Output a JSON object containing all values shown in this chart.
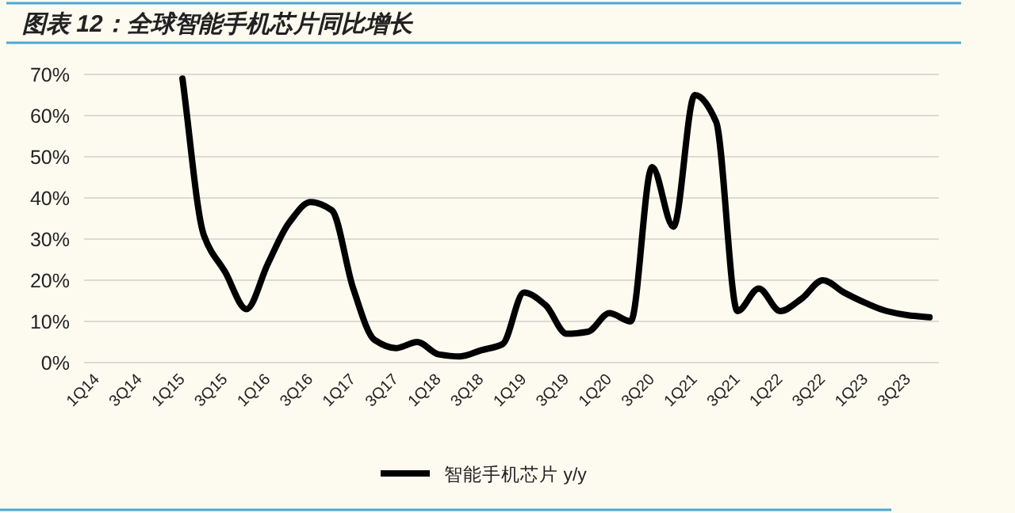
{
  "chart_data": {
    "type": "line",
    "title": "图表 12：全球智能手机芯片同比增长",
    "categories": [
      "1Q14",
      null,
      "3Q14",
      null,
      "1Q15",
      null,
      "3Q15",
      null,
      "1Q16",
      null,
      "3Q16",
      null,
      "1Q17",
      null,
      "3Q17",
      null,
      "1Q18",
      null,
      "3Q18",
      null,
      "1Q19",
      null,
      "3Q19",
      null,
      "1Q20",
      null,
      "3Q20",
      null,
      "1Q21",
      null,
      "3Q21",
      null,
      "1Q22",
      null,
      "3Q22",
      null,
      "1Q23",
      null,
      "3Q23",
      null
    ],
    "series": [
      {
        "name": "智能手机芯片 y/y",
        "color": "#000000",
        "values": [
          null,
          null,
          null,
          null,
          69,
          31,
          22,
          13,
          24,
          34,
          39,
          37,
          18,
          5.5,
          3.5,
          5,
          2,
          1.5,
          3,
          4.5,
          17,
          14,
          7,
          7.5,
          12,
          10,
          47.5,
          33,
          65,
          58.5,
          12.5,
          18,
          12.5,
          15.5,
          20,
          17,
          14.5,
          12.5,
          11.5,
          11
        ]
      }
    ],
    "ylim": [
      0,
      70
    ],
    "yticks": [
      {
        "value": 0,
        "label": "0%"
      },
      {
        "value": 10,
        "label": "10%"
      },
      {
        "value": 20,
        "label": "20%"
      },
      {
        "value": 30,
        "label": "30%"
      },
      {
        "value": 40,
        "label": "40%"
      },
      {
        "value": 50,
        "label": "50%"
      },
      {
        "value": 60,
        "label": "60%"
      },
      {
        "value": 70,
        "label": "70%"
      }
    ],
    "grid": "y",
    "legend": "bottom"
  }
}
